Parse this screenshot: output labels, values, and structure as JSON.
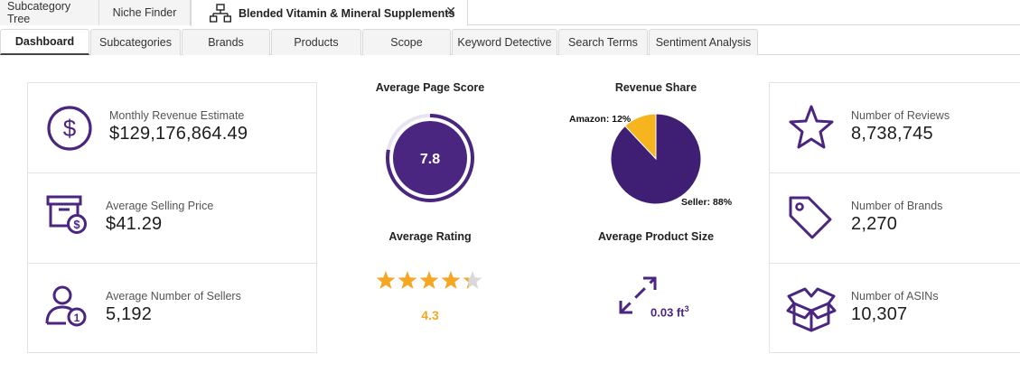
{
  "top_tabs": {
    "subcategory_tree": "Subcategory Tree",
    "niche_finder": "Niche Finder",
    "active": "Blended Vitamin & Mineral Supplements"
  },
  "sub_tabs": [
    "Dashboard",
    "Subcategories",
    "Brands",
    "Products",
    "Scope",
    "Keyword Detective",
    "Search Terms",
    "Sentiment Analysis"
  ],
  "left_metrics": [
    {
      "label": "Monthly Revenue Estimate",
      "value": "$129,176,864.49",
      "icon": "dollar-circle-icon"
    },
    {
      "label": "Average Selling Price",
      "value": "$41.29",
      "icon": "price-box-icon"
    },
    {
      "label": "Average Number of Sellers",
      "value": "5,192",
      "icon": "seller-icon"
    }
  ],
  "right_metrics": [
    {
      "label": "Number of Reviews",
      "value": "8,738,745",
      "icon": "star-outline-icon"
    },
    {
      "label": "Number of Brands",
      "value": "2,270",
      "icon": "tag-icon"
    },
    {
      "label": "Number of ASINs",
      "value": "10,307",
      "icon": "open-box-icon"
    }
  ],
  "page_score": {
    "title": "Average Page Score",
    "value": "7.8",
    "score": 7.8,
    "max": 10
  },
  "revenue_share": {
    "title": "Revenue Share",
    "amazon_label": "Amazon: 12%",
    "seller_label": "Seller: 88%",
    "amazon_pct": 12,
    "seller_pct": 88
  },
  "rating": {
    "title": "Average Rating",
    "value": "4.3",
    "stars": 4.3,
    "max": 5
  },
  "product_size": {
    "title": "Average Product Size",
    "value": "0.03 ft",
    "unit_sup": "3"
  },
  "colors": {
    "purple": "#4a2680",
    "dark_purple": "#3f1f73",
    "amber": "#f6b51e",
    "star_gold": "#f5a623",
    "star_grey": "#d9d9d9"
  }
}
